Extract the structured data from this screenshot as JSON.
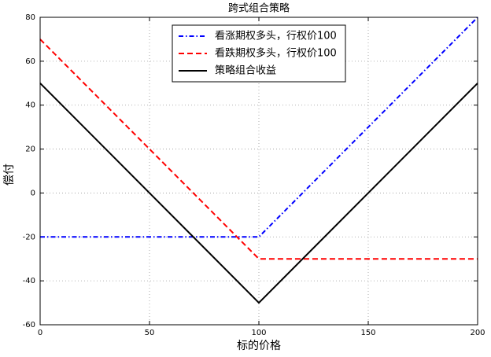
{
  "chart_data": {
    "type": "line",
    "title": "跨式组合策略",
    "x_label": "标的价格",
    "y_label": "偿付",
    "x": [
      0,
      100,
      200
    ],
    "series": [
      {
        "name": "看涨期权多头，行权价100",
        "color": "#0000ff",
        "linestyle": "dashdot",
        "values": [
          -20,
          -20,
          80
        ]
      },
      {
        "name": "看跌期权多头，行权价100",
        "color": "#ff0000",
        "linestyle": "dashed",
        "values": [
          70,
          -30,
          -30
        ]
      },
      {
        "name": "策略组合收益",
        "color": "#000000",
        "linestyle": "solid",
        "values": [
          50,
          -50,
          50
        ]
      }
    ],
    "xlim": [
      0,
      200
    ],
    "xticks": [
      0,
      50,
      100,
      150,
      200
    ],
    "ylim": [
      -60,
      80
    ],
    "yticks": [
      -60,
      -40,
      -20,
      0,
      20,
      40,
      60,
      80
    ],
    "grid": true,
    "legend": "upper center"
  }
}
